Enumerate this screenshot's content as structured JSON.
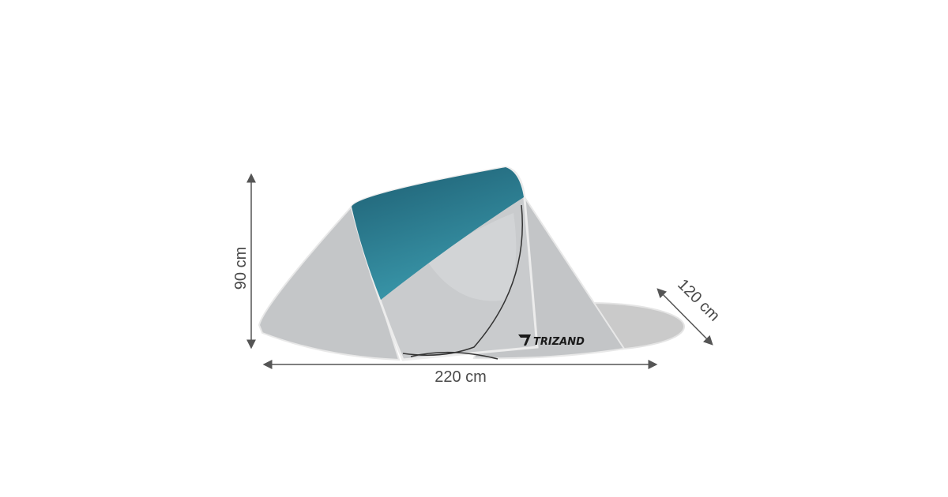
{
  "product": {
    "brand_logo": "TRIZAND",
    "colors": {
      "teal_dark": "#1e5f73",
      "teal_light": "#3a98ab",
      "fabric_grey": "#c6c8ca",
      "arrow": "#555555"
    }
  },
  "dimensions": {
    "height": "90 cm",
    "width": "220 cm",
    "depth": "120 cm"
  }
}
